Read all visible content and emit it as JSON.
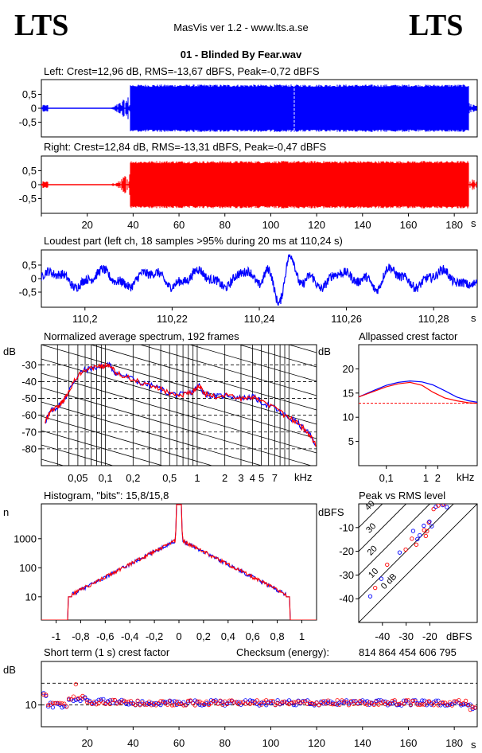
{
  "header": {
    "brand_left": "LTS",
    "brand_right": "LTS",
    "app_title": "MasVis ver 1.2 - www.lts.a.se",
    "file_name": "01 - Blinded By Fear.wav"
  },
  "left_channel": {
    "title": "Left: Crest=12,96 dB, RMS=-13,67 dBFS, Peak=-0,72 dBFS",
    "color": "#0000ff",
    "y_ticks": [
      "0,5",
      "0",
      "-0,5"
    ],
    "marker_time_s": 110.24,
    "envelope": {
      "intro_end_s": 3,
      "fade_start_s": 3,
      "body_start_s": 38.5,
      "body_end_s": 186.5,
      "track_end_s": 190,
      "intro_level": 0.12,
      "body_level": 0.85
    }
  },
  "right_channel": {
    "title": "Right: Crest=12,84 dB, RMS=-13,31 dBFS, Peak=-0,47 dBFS",
    "color": "#ff0000",
    "y_ticks": [
      "0,5",
      "0",
      "-0,5"
    ]
  },
  "time_axis": {
    "ticks": [
      "20",
      "40",
      "60",
      "80",
      "100",
      "120",
      "140",
      "160",
      "180"
    ],
    "tick_values": [
      20,
      40,
      60,
      80,
      100,
      120,
      140,
      160,
      180
    ],
    "unit": "s",
    "range": [
      0,
      190
    ]
  },
  "loudest": {
    "title": "Loudest part (left  ch, 18 samples >95% during 20 ms at 110,24 s)",
    "y_ticks": [
      "0,5",
      "0",
      "-0,5"
    ],
    "x_ticks": [
      "110,2",
      "110,22",
      "110,24",
      "110,26",
      "110,28"
    ],
    "x_tick_values": [
      110.2,
      110.22,
      110.24,
      110.26,
      110.28
    ],
    "x_range": [
      110.19,
      110.29
    ],
    "unit": "s"
  },
  "spectrum": {
    "title": "Normalized average spectrum, 192 frames",
    "ylabel": "dB",
    "y_ticks": [
      "-30",
      "-40",
      "-50",
      "-60",
      "-70",
      "-80"
    ],
    "y_tick_values": [
      -30,
      -40,
      -50,
      -60,
      -70,
      -80
    ],
    "y_range": [
      -90,
      -18
    ],
    "x_ticks": [
      "0,05",
      "0,1",
      "0,2",
      "0,5",
      "1",
      "2",
      "3",
      "4",
      "5",
      "7"
    ],
    "x_tick_values": [
      0.05,
      0.1,
      0.2,
      0.5,
      1,
      2,
      3,
      4,
      5,
      7
    ],
    "x_range_khz": [
      0.02,
      20
    ],
    "unit": "kHz"
  },
  "allpass": {
    "title": "Allpassed crest factor",
    "ylabel": "dB",
    "y_ticks": [
      "20",
      "15",
      "10",
      "5"
    ],
    "y_tick_values": [
      20,
      15,
      10,
      5
    ],
    "y_range": [
      0,
      25
    ],
    "x_ticks": [
      "0,1",
      "1",
      "2"
    ],
    "x_tick_values": [
      0.1,
      1,
      2
    ],
    "x_range_khz": [
      0.02,
      20
    ],
    "unit": "kHz",
    "reference_crest_db": 12.9
  },
  "histogram": {
    "title": "Histogram, \"bits\": 15,8/15,8",
    "ylabel": "n",
    "y_ticks": [
      "1000",
      "100",
      "10"
    ],
    "y_tick_values": [
      1000,
      100,
      10
    ],
    "x_ticks": [
      "-1",
      "-0,8",
      "-0,6",
      "-0,4",
      "-0,2",
      "0",
      "0,2",
      "0,4",
      "0,6",
      "0,8",
      "1"
    ],
    "x_tick_values": [
      -1,
      -0.8,
      -0.6,
      -0.4,
      -0.2,
      0,
      0.2,
      0.4,
      0.6,
      0.8,
      1
    ]
  },
  "peak_rms": {
    "title": "Peak vs RMS level",
    "ylabel": "dBFS",
    "y_ticks": [
      "-10",
      "-20",
      "-30",
      "-40"
    ],
    "y_tick_values": [
      -10,
      -20,
      -30,
      -40
    ],
    "x_ticks": [
      "-40",
      "-30",
      "-20"
    ],
    "x_tick_values": [
      -40,
      -30,
      -20
    ],
    "unit": "dBFS",
    "range": [
      -50,
      0
    ],
    "diagonal_labels": [
      "40",
      "30",
      "20",
      "10",
      "0 dB"
    ],
    "diagonal_offsets": [
      40,
      30,
      20,
      10,
      0
    ]
  },
  "short_crest": {
    "title": "Short term (1 s) crest factor",
    "ylabel": "dB",
    "y_ticks": [
      "10"
    ],
    "y_tick_values": [
      10
    ],
    "y_range": [
      0,
      30
    ],
    "dashed_levels": [
      20,
      10
    ]
  },
  "checksum": {
    "label": "Checksum (energy):",
    "value": "814 864 454 606 795"
  }
}
